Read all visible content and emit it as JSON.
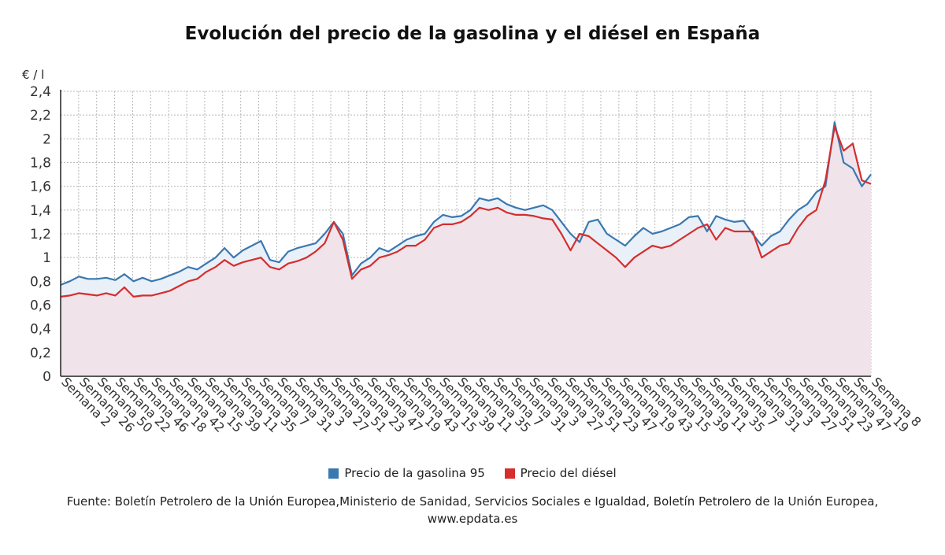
{
  "title": "Evolución del precio de la gasolina y el diésel en España",
  "source": "Fuente: Boletín Petrolero de la Unión Europea,Ministerio de Sanidad, Servicios Sociales e Igualdad, Boletín Petrolero de la Unión Europea, www.epdata.es",
  "colors": {
    "gasolina": "#3a78b0",
    "diesel": "#d62d2d",
    "grid": "#b8b8b8",
    "fill": "#f0e4ea"
  },
  "chart_data": {
    "type": "line",
    "title": "Evolución del precio de la gasolina y el diésel en España",
    "ylabel": "€ / l",
    "ylim": [
      0,
      2.4
    ],
    "yticks": [
      0,
      0.2,
      0.4,
      0.6,
      0.8,
      1,
      1.2,
      1.4,
      1.6,
      1.8,
      2,
      2.2,
      2.4
    ],
    "ytick_labels": [
      "0",
      "0,2",
      "0,4",
      "0,6",
      "0,8",
      "1",
      "1,2",
      "1,4",
      "1,6",
      "1,8",
      "2",
      "2,2",
      "2,4"
    ],
    "x_tick_labels": [
      "Semana 2",
      "Semana 26",
      "Semana 50",
      "Semana 22",
      "Semana 46",
      "Semana 18",
      "Semana 42",
      "Semana 15",
      "Semana 39",
      "Semana 11",
      "Semana 35",
      "Semana 7",
      "Semana 31",
      "Semana 3",
      "Semana 27",
      "Semana 51",
      "Semana 23",
      "Semana 47",
      "Semana 19",
      "Semana 43",
      "Semana 15",
      "Semana 39",
      "Semana 11",
      "Semana 35",
      "Semana 7",
      "Semana 31",
      "Semana 3",
      "Semana 27",
      "Semana 51",
      "Semana 23",
      "Semana 47",
      "Semana 19",
      "Semana 43",
      "Semana 15",
      "Semana 39",
      "Semana 11",
      "Semana 35",
      "Semana 7",
      "Semana 31",
      "Semana 3",
      "Semana 27",
      "Semana 51",
      "Semana 23",
      "Semana 47",
      "Semana 19",
      "Semana 8"
    ],
    "grid": true,
    "legend_position": "bottom",
    "series": [
      {
        "name": "Precio de la gasolina 95",
        "values": [
          0.77,
          0.8,
          0.84,
          0.82,
          0.82,
          0.83,
          0.81,
          0.86,
          0.8,
          0.83,
          0.8,
          0.82,
          0.85,
          0.88,
          0.92,
          0.9,
          0.95,
          1.0,
          1.08,
          1.0,
          1.06,
          1.1,
          1.14,
          0.98,
          0.96,
          1.05,
          1.08,
          1.1,
          1.12,
          1.2,
          1.3,
          1.2,
          0.85,
          0.95,
          1.0,
          1.08,
          1.05,
          1.1,
          1.15,
          1.18,
          1.2,
          1.3,
          1.36,
          1.34,
          1.35,
          1.4,
          1.5,
          1.48,
          1.5,
          1.45,
          1.42,
          1.4,
          1.42,
          1.44,
          1.4,
          1.3,
          1.2,
          1.13,
          1.3,
          1.32,
          1.2,
          1.15,
          1.1,
          1.18,
          1.25,
          1.2,
          1.22,
          1.25,
          1.28,
          1.34,
          1.35,
          1.22,
          1.35,
          1.32,
          1.3,
          1.31,
          1.2,
          1.1,
          1.18,
          1.22,
          1.32,
          1.4,
          1.45,
          1.55,
          1.6,
          2.14,
          1.8,
          1.75,
          1.6,
          1.7
        ]
      },
      {
        "name": "Precio del diésel",
        "values": [
          0.67,
          0.68,
          0.7,
          0.69,
          0.68,
          0.7,
          0.68,
          0.75,
          0.67,
          0.68,
          0.68,
          0.7,
          0.72,
          0.76,
          0.8,
          0.82,
          0.88,
          0.92,
          0.98,
          0.93,
          0.96,
          0.98,
          1.0,
          0.92,
          0.9,
          0.95,
          0.97,
          1.0,
          1.05,
          1.12,
          1.3,
          1.15,
          0.82,
          0.9,
          0.93,
          1.0,
          1.02,
          1.05,
          1.1,
          1.1,
          1.15,
          1.25,
          1.28,
          1.28,
          1.3,
          1.35,
          1.42,
          1.4,
          1.42,
          1.38,
          1.36,
          1.36,
          1.35,
          1.33,
          1.32,
          1.2,
          1.06,
          1.2,
          1.18,
          1.12,
          1.06,
          1.0,
          0.92,
          1.0,
          1.05,
          1.1,
          1.08,
          1.1,
          1.15,
          1.2,
          1.25,
          1.28,
          1.15,
          1.25,
          1.22,
          1.22,
          1.22,
          1.0,
          1.05,
          1.1,
          1.12,
          1.25,
          1.35,
          1.4,
          1.65,
          2.1,
          1.9,
          1.96,
          1.65,
          1.62
        ]
      }
    ]
  }
}
